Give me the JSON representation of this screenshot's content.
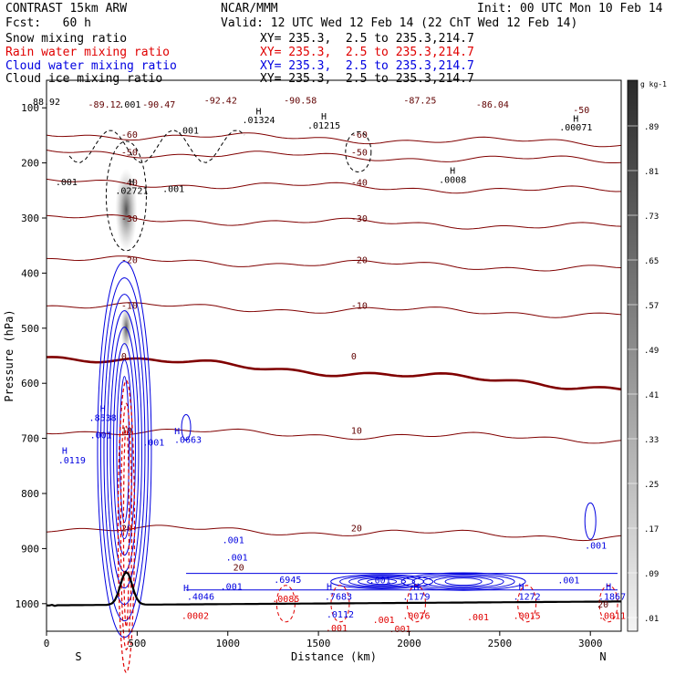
{
  "header": {
    "model": "CONTRAST 15km ARW",
    "org": "NCAR/MMM",
    "init": "Init: 00 UTC Mon 10 Feb 14",
    "fcst": "Fcst:   60 h",
    "valid": "Valid: 12 UTC Wed 12 Feb 14 (22 ChT Wed 12 Feb 14)",
    "fields": [
      {
        "name": "Snow mixing ratio",
        "xy": "XY= 235.3,  2.5 to 235.3,214.7",
        "color": "#000000"
      },
      {
        "name": "Rain water mixing ratio",
        "xy": "XY= 235.3,  2.5 to 235.3,214.7",
        "color": "#e00000"
      },
      {
        "name": "Cloud water mixing ratio",
        "xy": "XY= 235.3,  2.5 to 235.3,214.7",
        "color": "#0000e0"
      },
      {
        "name": "Cloud ice mixing ratio",
        "xy": "XY= 235.3,  2.5 to 235.3,214.7",
        "color": "#000000"
      }
    ]
  },
  "chart_data": {
    "type": "contour",
    "xlabel": "Distance (km)",
    "ylabel": "Pressure (hPa)",
    "xlim": [
      0,
      3170
    ],
    "ylim": [
      1050,
      50
    ],
    "x_ticks": [
      "0",
      "500",
      "1000",
      "1500",
      "2000",
      "2500",
      "3000"
    ],
    "y_ticks": [
      "100",
      "200",
      "300",
      "400",
      "500",
      "600",
      "700",
      "800",
      "900",
      "1000"
    ],
    "x_end_labels": {
      "left": "S",
      "right": "N"
    },
    "colorbar": {
      "unit": "g kg-1",
      "levels": [
        ".89",
        ".81",
        ".73",
        ".65",
        ".57",
        ".49",
        ".41",
        ".33",
        ".25",
        ".17",
        ".09",
        ".01"
      ]
    },
    "temperature_contours": [
      {
        "p": 550,
        "label": "0",
        "bold": true
      },
      {
        "p": 458,
        "label": "-10"
      },
      {
        "p": 375,
        "label": "-20"
      },
      {
        "p": 300,
        "label": "-30"
      },
      {
        "p": 235,
        "label": "-40"
      },
      {
        "p": 180,
        "label": "-50"
      },
      {
        "p": 148,
        "label": "-60"
      },
      {
        "p": 685,
        "label": "10"
      },
      {
        "p": 862,
        "label": "20"
      }
    ],
    "annotations": [
      {
        "text": "88.92",
        "x": 0,
        "p": 95
      },
      {
        "text": "-89.12",
        "x": 320,
        "p": 100
      },
      {
        "text": "-90.47",
        "x": 620,
        "p": 100
      },
      {
        "text": "-92.42",
        "x": 960,
        "p": 92
      },
      {
        "text": "-90.58",
        "x": 1400,
        "p": 92
      },
      {
        "text": "-87.25",
        "x": 2060,
        "p": 92
      },
      {
        "text": "-86.04",
        "x": 2460,
        "p": 100
      },
      {
        "text": ".001",
        "x": 460,
        "p": 100
      },
      {
        "text": "H",
        "x": 1170,
        "p": 112
      },
      {
        "text": ".01324",
        "x": 1170,
        "p": 128
      },
      {
        "text": "H",
        "x": 1530,
        "p": 121
      },
      {
        "text": ".01215",
        "x": 1530,
        "p": 138
      },
      {
        "text": "H",
        "x": 2920,
        "p": 125
      },
      {
        "text": ".00071",
        "x": 2920,
        "p": 141
      },
      {
        "text": "-50",
        "x": 2950,
        "p": 110
      },
      {
        "text": "H",
        "x": 470,
        "p": 240
      },
      {
        "text": ".02721",
        "x": 470,
        "p": 256
      },
      {
        "text": ".001",
        "x": 700,
        "p": 253
      },
      {
        "text": ".001",
        "x": 110,
        "p": 240
      },
      {
        "text": ".001",
        "x": 780,
        "p": 147
      },
      {
        "text": "H",
        "x": 2240,
        "p": 220
      },
      {
        "text": ".0008",
        "x": 2240,
        "p": 236
      },
      {
        "text": "H",
        "x": 310,
        "p": 652
      },
      {
        "text": ".8538",
        "x": 310,
        "p": 668
      },
      {
        "text": ".001",
        "x": 300,
        "p": 700
      },
      {
        "text": ".001",
        "x": 590,
        "p": 713
      },
      {
        "text": "H",
        "x": 720,
        "p": 692
      },
      {
        "text": ".0663",
        "x": 780,
        "p": 708
      },
      {
        "text": "H",
        "x": 100,
        "p": 728
      },
      {
        "text": ".0119",
        "x": 140,
        "p": 745
      },
      {
        "text": ".001",
        "x": 1030,
        "p": 890
      },
      {
        "text": ".001",
        "x": 1050,
        "p": 922
      },
      {
        "text": "20",
        "x": 1060,
        "p": 940
      },
      {
        "text": ".001",
        "x": 1020,
        "p": 975
      },
      {
        "text": "H",
        "x": 770,
        "p": 977
      },
      {
        "text": ".4046",
        "x": 850,
        "p": 993
      },
      {
        "text": ".0002",
        "x": 820,
        "p": 1028
      },
      {
        "text": ".6945",
        "x": 1330,
        "p": 962
      },
      {
        "text": ".0085",
        "x": 1320,
        "p": 997
      },
      {
        "text": "H",
        "x": 1560,
        "p": 975
      },
      {
        "text": ".7683",
        "x": 1610,
        "p": 993
      },
      {
        "text": ".0112",
        "x": 1620,
        "p": 1025
      },
      {
        "text": ".001",
        "x": 1600,
        "p": 1050
      },
      {
        "text": ".001",
        "x": 1840,
        "p": 963
      },
      {
        "text": ".001",
        "x": 1860,
        "p": 1035
      },
      {
        "text": ".001",
        "x": 1950,
        "p": 1052
      },
      {
        "text": "H",
        "x": 2040,
        "p": 975
      },
      {
        "text": ".1179",
        "x": 2040,
        "p": 993
      },
      {
        "text": ".0076",
        "x": 2040,
        "p": 1028
      },
      {
        "text": ".001",
        "x": 2380,
        "p": 1030
      },
      {
        "text": "H",
        "x": 2620,
        "p": 975
      },
      {
        "text": ".1272",
        "x": 2650,
        "p": 993
      },
      {
        "text": ".0015",
        "x": 2650,
        "p": 1028
      },
      {
        "text": ".001",
        "x": 2880,
        "p": 963
      },
      {
        "text": ".001",
        "x": 3030,
        "p": 900
      },
      {
        "text": "H",
        "x": 3100,
        "p": 975
      },
      {
        "text": ".1867",
        "x": 3120,
        "p": 993
      },
      {
        "text": ".0011",
        "x": 3120,
        "p": 1028
      },
      {
        "text": "20",
        "x": 3070,
        "p": 1007
      }
    ]
  }
}
